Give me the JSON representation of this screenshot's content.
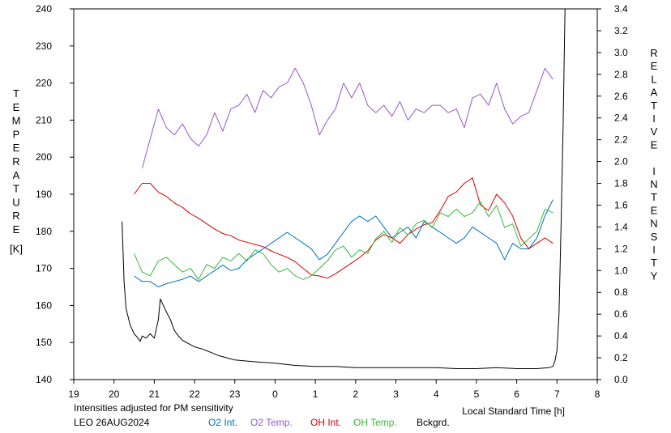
{
  "chart_data": {
    "type": "line",
    "xlabel": "Local Standard Time [h]",
    "ylabel": "TEMPERATURE",
    "ylabel_unit": "[K]",
    "y2label": "RELATIVE INTENSITY",
    "note": "Intensities adjusted for PM sensitivity",
    "station": "LEO 26AUG2024",
    "x_ticks": [
      "19",
      "20",
      "21",
      "22",
      "23",
      "0",
      "1",
      "2",
      "3",
      "4",
      "5",
      "6",
      "7",
      "8"
    ],
    "xlim": [
      19,
      32
    ],
    "y_ticks": [
      "140",
      "150",
      "160",
      "170",
      "180",
      "190",
      "200",
      "210",
      "220",
      "230",
      "240"
    ],
    "ylim": [
      140,
      240
    ],
    "y2_ticks": [
      "0.0",
      "0.2",
      "0.4",
      "0.6",
      "0.8",
      "1.0",
      "1.2",
      "1.4",
      "1.6",
      "1.8",
      "2.0",
      "2.2",
      "2.4",
      "2.6",
      "2.8",
      "3.0",
      "3.2",
      "3.4"
    ],
    "y2lim": [
      0.0,
      3.4
    ],
    "grid": false,
    "legend_position": "bottom",
    "series": [
      {
        "name": "O2 Int.",
        "axis": "right",
        "color": "#0070c0",
        "x": [
          20.5,
          20.7,
          20.9,
          21.1,
          21.3,
          21.5,
          21.7,
          21.9,
          22.1,
          22.3,
          22.5,
          22.7,
          22.9,
          23.1,
          23.3,
          23.5,
          23.7,
          23.9,
          24.1,
          24.3,
          24.5,
          24.7,
          24.9,
          25.1,
          25.3,
          25.5,
          25.7,
          25.9,
          26.1,
          26.3,
          26.5,
          26.7,
          26.9,
          27.1,
          27.3,
          27.5,
          27.7,
          27.9,
          28.1,
          28.3,
          28.5,
          28.7,
          28.9,
          29.1,
          29.3,
          29.5,
          29.7,
          29.9,
          30.1,
          30.3,
          30.5,
          30.7,
          30.9
        ],
        "y": [
          0.95,
          0.9,
          0.9,
          0.85,
          0.88,
          0.9,
          0.92,
          0.95,
          0.9,
          0.95,
          1.0,
          1.05,
          1.0,
          1.02,
          1.1,
          1.15,
          1.2,
          1.25,
          1.3,
          1.35,
          1.3,
          1.25,
          1.2,
          1.1,
          1.15,
          1.25,
          1.35,
          1.45,
          1.5,
          1.45,
          1.5,
          1.4,
          1.3,
          1.35,
          1.4,
          1.3,
          1.45,
          1.4,
          1.35,
          1.3,
          1.25,
          1.3,
          1.4,
          1.35,
          1.3,
          1.25,
          1.1,
          1.25,
          1.2,
          1.2,
          1.3,
          1.5,
          1.65
        ]
      },
      {
        "name": "O2 Temp.",
        "axis": "left",
        "color": "#9955cc",
        "x": [
          20.7,
          20.9,
          21.1,
          21.3,
          21.5,
          21.7,
          21.9,
          22.1,
          22.3,
          22.5,
          22.7,
          22.9,
          23.1,
          23.3,
          23.5,
          23.7,
          23.9,
          24.1,
          24.3,
          24.5,
          24.7,
          24.9,
          25.1,
          25.3,
          25.5,
          25.7,
          25.9,
          26.1,
          26.3,
          26.5,
          26.7,
          26.9,
          27.1,
          27.3,
          27.5,
          27.7,
          27.9,
          28.1,
          28.3,
          28.5,
          28.7,
          28.9,
          29.1,
          29.3,
          29.5,
          29.7,
          29.9,
          30.1,
          30.3,
          30.5,
          30.7,
          30.9
        ],
        "y": [
          197,
          205,
          213,
          208,
          206,
          209,
          205,
          203,
          206,
          212,
          207,
          213,
          214,
          217,
          212,
          218,
          216,
          219,
          220,
          224,
          220,
          214,
          206,
          210,
          213,
          220,
          216,
          220,
          214,
          212,
          214,
          211,
          215,
          210,
          213,
          212,
          214,
          214,
          212,
          213,
          208,
          216,
          217,
          214,
          220,
          213,
          209,
          211,
          212,
          218,
          224,
          221
        ]
      },
      {
        "name": "OH Int.",
        "axis": "right",
        "color": "#dd0000",
        "x": [
          20.5,
          20.7,
          20.9,
          21.1,
          21.3,
          21.5,
          21.7,
          21.9,
          22.1,
          22.3,
          22.5,
          22.7,
          22.9,
          23.1,
          23.3,
          23.5,
          23.7,
          23.9,
          24.1,
          24.3,
          24.5,
          24.7,
          24.9,
          25.1,
          25.3,
          25.5,
          25.7,
          25.9,
          26.1,
          26.3,
          26.5,
          26.7,
          26.9,
          27.1,
          27.3,
          27.5,
          27.7,
          27.9,
          28.1,
          28.3,
          28.5,
          28.7,
          28.9,
          29.1,
          29.3,
          29.5,
          29.7,
          29.9,
          30.1,
          30.3,
          30.5,
          30.7,
          30.9
        ],
        "y": [
          1.7,
          1.8,
          1.8,
          1.72,
          1.68,
          1.62,
          1.58,
          1.52,
          1.48,
          1.43,
          1.38,
          1.34,
          1.32,
          1.28,
          1.26,
          1.24,
          1.22,
          1.18,
          1.15,
          1.12,
          1.08,
          1.02,
          0.96,
          0.95,
          0.93,
          0.97,
          1.02,
          1.07,
          1.12,
          1.18,
          1.28,
          1.33,
          1.3,
          1.25,
          1.33,
          1.38,
          1.42,
          1.44,
          1.55,
          1.68,
          1.72,
          1.8,
          1.85,
          1.6,
          1.55,
          1.7,
          1.62,
          1.5,
          1.3,
          1.2,
          1.25,
          1.3,
          1.25
        ]
      },
      {
        "name": "OH Temp.",
        "axis": "left",
        "color": "#33bb33",
        "x": [
          20.5,
          20.7,
          20.9,
          21.1,
          21.3,
          21.5,
          21.7,
          21.9,
          22.1,
          22.3,
          22.5,
          22.7,
          22.9,
          23.1,
          23.3,
          23.5,
          23.7,
          23.9,
          24.1,
          24.3,
          24.5,
          24.7,
          24.9,
          25.1,
          25.3,
          25.5,
          25.7,
          25.9,
          26.1,
          26.3,
          26.5,
          26.7,
          26.9,
          27.1,
          27.3,
          27.5,
          27.7,
          27.9,
          28.1,
          28.3,
          28.5,
          28.7,
          28.9,
          29.1,
          29.3,
          29.5,
          29.7,
          29.9,
          30.1,
          30.3,
          30.5,
          30.7,
          30.9
        ],
        "y": [
          174,
          169,
          168,
          172,
          173,
          171,
          169,
          170,
          167,
          171,
          170,
          173,
          172,
          174,
          172,
          175,
          174,
          171,
          169,
          170,
          168,
          167,
          168,
          170,
          172,
          175,
          176,
          173,
          175,
          174,
          178,
          180,
          177,
          181,
          179,
          182,
          183,
          181,
          185,
          184,
          186,
          184,
          185,
          188,
          184,
          187,
          181,
          182,
          176,
          178,
          180,
          186,
          185
        ]
      },
      {
        "name": "Bckgrd.",
        "axis": "right",
        "color": "#000000",
        "x": [
          20.2,
          20.25,
          20.3,
          20.4,
          20.5,
          20.6,
          20.65,
          20.7,
          20.8,
          20.9,
          21.0,
          21.1,
          21.15,
          21.2,
          21.3,
          21.4,
          21.5,
          21.6,
          21.7,
          21.8,
          22.0,
          22.2,
          22.4,
          22.6,
          22.8,
          23.0,
          23.3,
          23.6,
          24.0,
          24.5,
          25.0,
          25.5,
          26.0,
          26.5,
          27.0,
          27.5,
          28.0,
          28.5,
          29.0,
          29.5,
          30.0,
          30.5,
          30.8,
          30.9,
          30.95,
          31.0,
          31.05,
          31.1,
          31.15,
          31.2
        ],
        "y": [
          1.45,
          0.9,
          0.65,
          0.5,
          0.42,
          0.38,
          0.35,
          0.4,
          0.38,
          0.42,
          0.38,
          0.55,
          0.74,
          0.7,
          0.62,
          0.55,
          0.45,
          0.4,
          0.36,
          0.34,
          0.3,
          0.28,
          0.25,
          0.22,
          0.2,
          0.18,
          0.17,
          0.16,
          0.15,
          0.13,
          0.12,
          0.12,
          0.11,
          0.11,
          0.11,
          0.11,
          0.11,
          0.1,
          0.1,
          0.11,
          0.1,
          0.1,
          0.11,
          0.12,
          0.17,
          0.27,
          0.6,
          1.4,
          2.3,
          3.4
        ]
      }
    ]
  }
}
